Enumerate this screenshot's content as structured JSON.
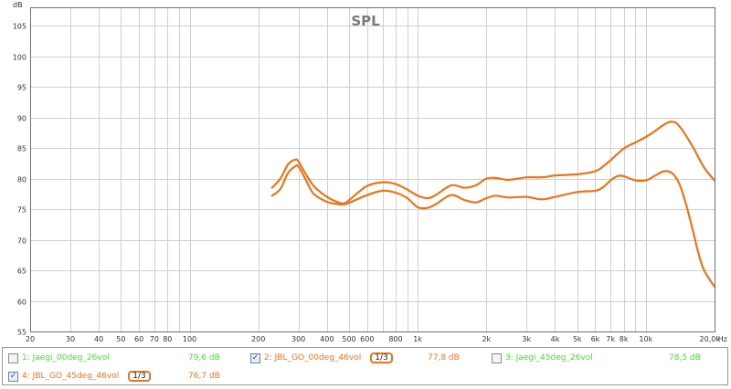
{
  "colors": {
    "background": "#ffffff",
    "grid": "#cfcfcf",
    "axis": "#707070",
    "title": "#7a7a7a",
    "curve": "#e8751a",
    "legend_green": "#44dd33",
    "legend_orange": "#e8751a"
  },
  "chart_data": {
    "type": "line",
    "title": "SPL",
    "xlabel": "Hz",
    "ylabel": "dB",
    "x_scale": "log",
    "xlim": [
      20,
      20000
    ],
    "ylim": [
      55,
      108
    ],
    "grid": true,
    "y_ticks": [
      "55",
      "60",
      "65",
      "70",
      "75",
      "80",
      "85",
      "90",
      "95",
      "100",
      "105"
    ],
    "x_ticks": [
      {
        "v": 20,
        "label": "20"
      },
      {
        "v": 30,
        "label": "30"
      },
      {
        "v": 40,
        "label": "40"
      },
      {
        "v": 50,
        "label": "50"
      },
      {
        "v": 60,
        "label": "60"
      },
      {
        "v": 70,
        "label": "70"
      },
      {
        "v": 80,
        "label": "80"
      },
      {
        "v": 100,
        "label": "100"
      },
      {
        "v": 200,
        "label": "200"
      },
      {
        "v": 300,
        "label": "300"
      },
      {
        "v": 400,
        "label": "400"
      },
      {
        "v": 500,
        "label": "500"
      },
      {
        "v": 600,
        "label": "600"
      },
      {
        "v": 800,
        "label": "800"
      },
      {
        "v": 1000,
        "label": "1k"
      },
      {
        "v": 2000,
        "label": "2k"
      },
      {
        "v": 3000,
        "label": "3k"
      },
      {
        "v": 4000,
        "label": "4k"
      },
      {
        "v": 5000,
        "label": "5k"
      },
      {
        "v": 6000,
        "label": "6k"
      },
      {
        "v": 7000,
        "label": "7k"
      },
      {
        "v": 8000,
        "label": "8k"
      },
      {
        "v": 10000,
        "label": "10k"
      },
      {
        "v": 20000,
        "label": "20,0k"
      }
    ],
    "minor_x_gridlines": [
      90,
      700,
      900,
      9000
    ],
    "series": [
      {
        "name": "2: JBL_GO_00deg_46vol",
        "color": "#e8751a",
        "x": [
          230,
          250,
          270,
          290,
          300,
          320,
          350,
          400,
          450,
          480,
          520,
          600,
          700,
          800,
          900,
          1000,
          1100,
          1200,
          1400,
          1600,
          1800,
          2000,
          2200,
          2500,
          3000,
          3500,
          4000,
          5000,
          6000,
          6500,
          7000,
          8000,
          9000,
          10000,
          11000,
          12000,
          13000,
          14000,
          16000,
          18000,
          20000
        ],
        "y": [
          78.5,
          80.0,
          82.3,
          83.1,
          82.8,
          81.0,
          78.8,
          77.0,
          76.1,
          76.0,
          77.0,
          78.8,
          79.4,
          79.1,
          78.2,
          77.2,
          76.8,
          77.3,
          78.9,
          78.5,
          78.9,
          80.0,
          80.1,
          79.8,
          80.2,
          80.2,
          80.5,
          80.7,
          81.2,
          82.0,
          83.0,
          84.9,
          85.9,
          86.8,
          87.8,
          88.8,
          89.3,
          88.6,
          85.3,
          81.8,
          79.7
        ]
      },
      {
        "name": "4: JBL_GO_45deg_46vol",
        "color": "#e8751a",
        "x": [
          230,
          250,
          270,
          290,
          300,
          320,
          350,
          400,
          450,
          480,
          520,
          600,
          700,
          800,
          900,
          1000,
          1100,
          1200,
          1400,
          1600,
          1800,
          2000,
          2200,
          2500,
          3000,
          3500,
          4000,
          5000,
          6000,
          6500,
          7000,
          7500,
          8000,
          9000,
          10000,
          11000,
          12000,
          13000,
          14000,
          15000,
          16000,
          17000,
          18000,
          20000
        ],
        "y": [
          77.2,
          78.3,
          80.9,
          82.0,
          82.0,
          80.1,
          77.5,
          76.2,
          75.8,
          75.8,
          76.3,
          77.3,
          78.0,
          77.7,
          76.8,
          75.3,
          75.2,
          75.8,
          77.3,
          76.5,
          76.1,
          76.8,
          77.2,
          76.9,
          77.0,
          76.6,
          77.0,
          77.8,
          78.0,
          78.6,
          79.7,
          80.4,
          80.4,
          79.7,
          79.7,
          80.5,
          81.2,
          80.9,
          79.2,
          75.8,
          71.8,
          67.8,
          65.0,
          62.3
        ]
      }
    ]
  },
  "legend": {
    "items": [
      {
        "label": "1: Jaegi_00deg_26vol",
        "value": "79,6 dB",
        "checked": false,
        "color": "#44dd33",
        "smoothing": ""
      },
      {
        "label": "2: JBL_GO_00deg_46vol",
        "value": "77,8 dB",
        "checked": true,
        "color": "#e8751a",
        "smoothing": "1/3"
      },
      {
        "label": "3: Jaegi_45deg_26vol",
        "value": "78,5 dB",
        "checked": false,
        "color": "#44dd33",
        "smoothing": ""
      },
      {
        "label": "4: JBL_GO_45deg_46vol",
        "value": "76,7 dB",
        "checked": true,
        "color": "#e8751a",
        "smoothing": "1/3"
      }
    ]
  }
}
